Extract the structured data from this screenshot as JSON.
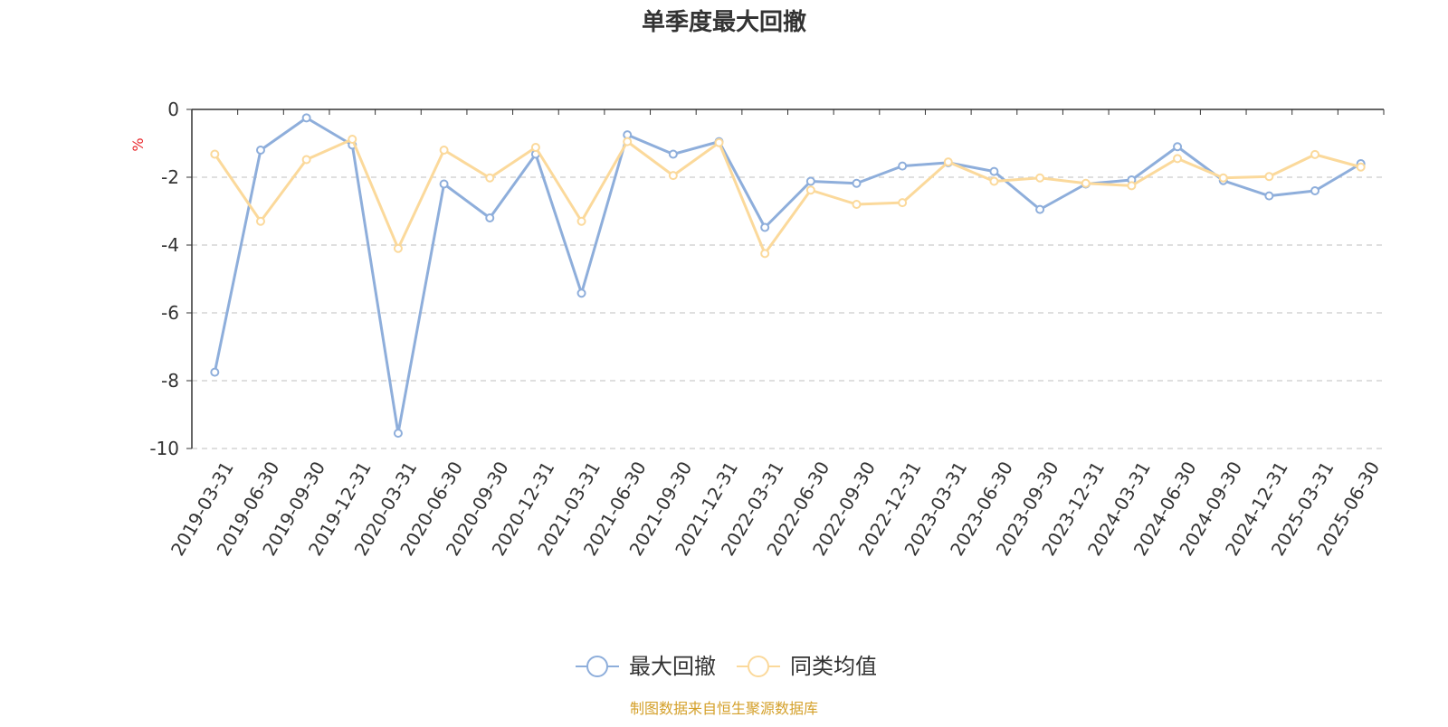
{
  "chart_data": {
    "type": "line",
    "title": "单季度最大回撤",
    "ylabel": "%",
    "ylim": [
      -10,
      0
    ],
    "yticks": [
      0,
      -2,
      -4,
      -6,
      -8,
      -10
    ],
    "grid": true,
    "legend_position": "bottom-center",
    "categories": [
      "2019-03-31",
      "2019-06-30",
      "2019-09-30",
      "2019-12-31",
      "2020-03-31",
      "2020-06-30",
      "2020-09-30",
      "2020-12-31",
      "2021-03-31",
      "2021-06-30",
      "2021-09-30",
      "2021-12-31",
      "2022-03-31",
      "2022-06-30",
      "2022-09-30",
      "2022-12-31",
      "2023-03-31",
      "2023-06-30",
      "2023-09-30",
      "2023-12-31",
      "2024-03-31",
      "2024-06-30",
      "2024-09-30",
      "2024-12-31",
      "2025-03-31",
      "2025-06-30"
    ],
    "series": [
      {
        "name": "最大回撤",
        "color": "#8eaedb",
        "values": [
          -7.75,
          -1.2,
          -0.25,
          -1.05,
          -9.55,
          -2.2,
          -3.2,
          -1.32,
          -5.42,
          -0.75,
          -1.32,
          -0.95,
          -3.48,
          -2.12,
          -2.18,
          -1.67,
          -1.57,
          -1.83,
          -2.95,
          -2.2,
          -2.08,
          -1.1,
          -2.1,
          -2.55,
          -2.4,
          -1.6
        ]
      },
      {
        "name": "同类均值",
        "color": "#fbd99b",
        "values": [
          -1.32,
          -3.3,
          -1.48,
          -0.88,
          -4.1,
          -1.2,
          -2.02,
          -1.12,
          -3.3,
          -0.95,
          -1.95,
          -0.98,
          -4.25,
          -2.38,
          -2.8,
          -2.75,
          -1.55,
          -2.12,
          -2.02,
          -2.18,
          -2.25,
          -1.45,
          -2.02,
          -1.98,
          -1.33,
          -1.7
        ]
      }
    ]
  },
  "footer": {
    "source": "制图数据来自恒生聚源数据库"
  }
}
